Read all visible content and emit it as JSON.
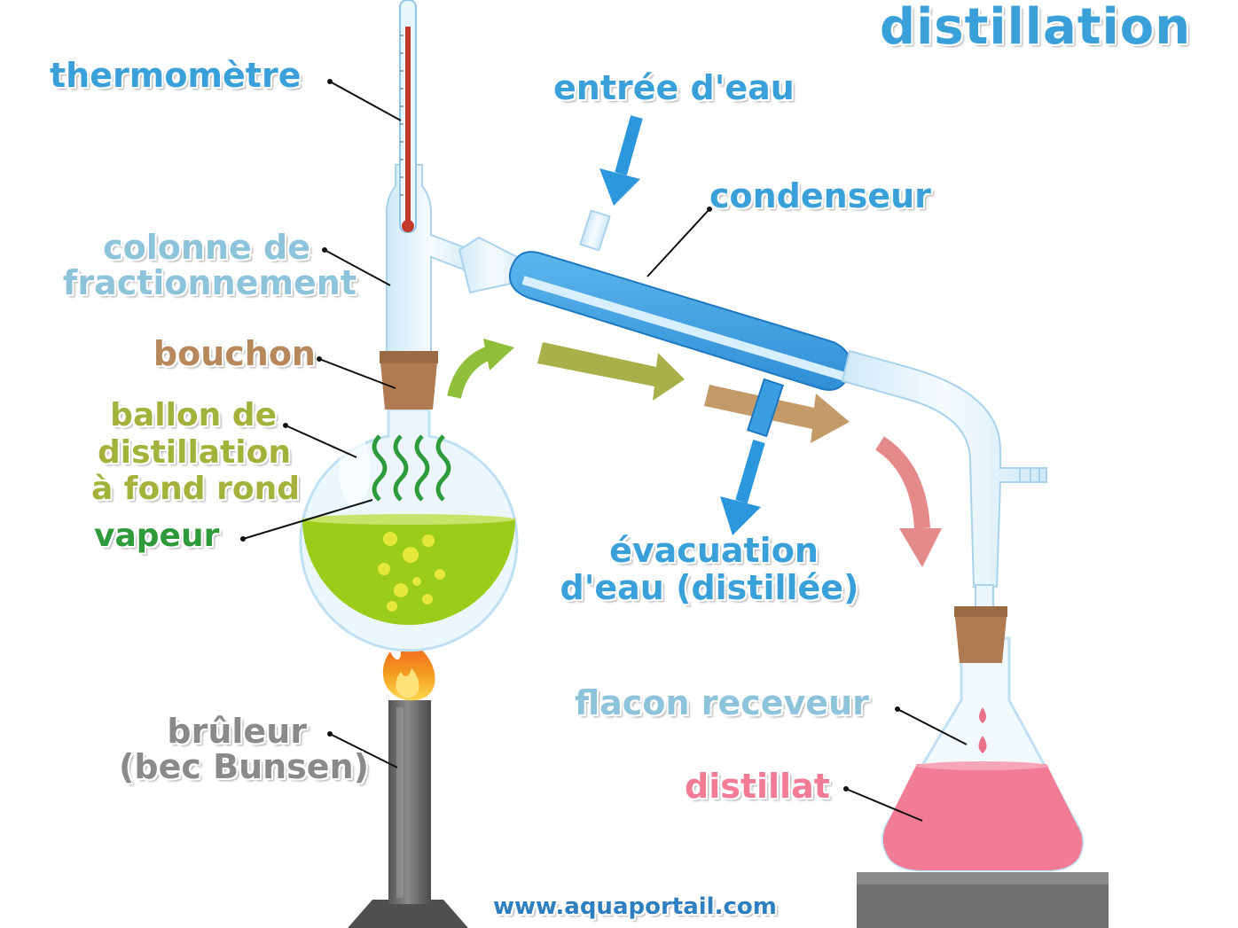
{
  "title": "distillation",
  "labels": {
    "thermometre": "thermomètre",
    "entree_eau": "entrée d'eau",
    "condenseur": "condenseur",
    "colonne_1": "colonne de",
    "colonne_2": "fractionnement",
    "bouchon": "bouchon",
    "ballon_1": "ballon de",
    "ballon_2": "distillation",
    "ballon_3": "à fond rond",
    "vapeur": "vapeur",
    "evacuation_1": "évacuation",
    "evacuation_2": "d'eau (distillée)",
    "flacon": "flacon receveur",
    "distillat": "distillat",
    "bruleur_1": "brûleur",
    "bruleur_2": "(bec Bunsen)"
  },
  "footer_url": "www.aquaportail.com",
  "colors": {
    "blue_label": "#3aa0da",
    "water_blue": "#3a9fe0",
    "liquid_green": "#9ccc1a",
    "vapor_green": "#2e9a3a",
    "cork_brown": "#b07a52",
    "distillate_pink": "#f27b96",
    "burner_gray": "#6d6d6d",
    "flame_orange": "#f29a1e"
  }
}
